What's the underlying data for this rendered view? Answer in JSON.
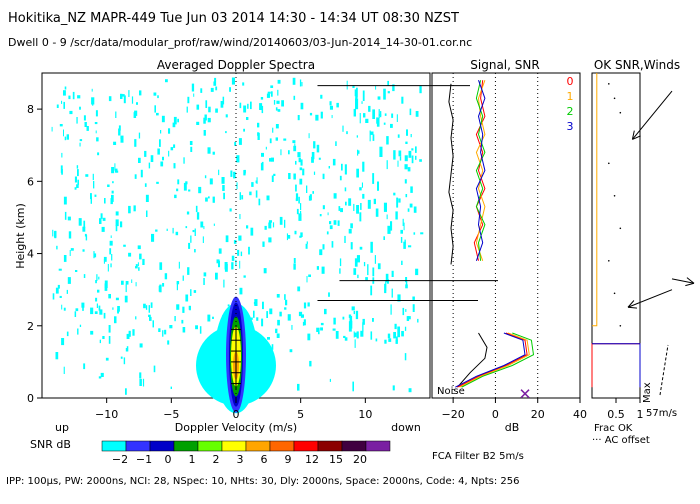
{
  "header": {
    "title_line": "Hokitika_NZ   MAPR-449   Tue Jun 03 2014  14:30  -  14:34 UT 08:30 NZST",
    "dwell_line": "Dwell   0  -   9    /scr/data/modular_prof/raw/wind/20140603/03-Jun-2014_14-30-01.cor.nc"
  },
  "footer": {
    "params": "IPP: 100μs,  PW: 2000ns,  NCI:  28,  NSpec: 10, NHts: 30,  Dly: 2000ns,  Space: 2000ns,  Code: 4,  Npts: 256",
    "filter": "FCA Filter B2   5m/s"
  },
  "chart_data": [
    {
      "type": "heatmap",
      "title": "Averaged Doppler Spectra",
      "xlabel": "Doppler Velocity (m/s)",
      "ylabel": "Height (km)",
      "xlim": [
        -15,
        15
      ],
      "ylim": [
        0,
        9
      ],
      "x_ticks": [
        -10,
        -5,
        0,
        5,
        10
      ],
      "x_tick_labels": [
        "−10",
        "−5",
        "0",
        "5",
        "10"
      ],
      "y_ticks": [
        0,
        2,
        4,
        6,
        8
      ],
      "y_tick_labels": [
        "0",
        "2",
        "4",
        "6",
        "8"
      ],
      "x_end_labels": {
        "left": "up",
        "right": "down"
      },
      "colorbar": {
        "label": "SNR dB",
        "tick_labels": [
          "−2",
          "−1",
          "0",
          "1",
          "2",
          "3",
          "6",
          "9",
          "12",
          "15",
          "20"
        ],
        "colors": [
          "#00ffff",
          "#3333ff",
          "#0000c8",
          "#00a000",
          "#66ff00",
          "#ffff00",
          "#ffa500",
          "#ff6600",
          "#ff0000",
          "#8b0000",
          "#400040",
          "#7a1fa2"
        ]
      },
      "signal_core": {
        "height_range_km": [
          0.3,
          2.0
        ],
        "peak_velocity_ms": 0,
        "peak_snr_db": 20
      },
      "bad_heights_km": [
        8.65,
        3.25,
        2.7
      ]
    },
    {
      "type": "line",
      "title": "Signal, SNR",
      "xlabel": "dB",
      "xlim": [
        -30,
        40
      ],
      "ylim": [
        0,
        9
      ],
      "x_ticks": [
        -20,
        0,
        20,
        40
      ],
      "x_tick_labels": [
        "−20",
        "0",
        "20",
        "40"
      ],
      "annotations": [
        "Noise"
      ],
      "legend": [
        "0",
        "1",
        "2",
        "3"
      ],
      "legend_colors": [
        "#ff0000",
        "#ffaa00",
        "#00cc00",
        "#0000cc"
      ],
      "series": [
        {
          "name": "Noise",
          "color": "#000000",
          "points": [
            [
              -21,
              3.7
            ],
            [
              -20,
              4.2
            ],
            [
              -21,
              4.7
            ],
            [
              -20,
              5.2
            ],
            [
              -22,
              5.7
            ],
            [
              -21,
              6.2
            ],
            [
              -20,
              6.7
            ],
            [
              -21,
              7.2
            ],
            [
              -20,
              7.7
            ],
            [
              -22,
              8.2
            ],
            [
              -21,
              8.7
            ]
          ]
        },
        {
          "name": "0",
          "color": "#ff0000",
          "points": [
            [
              -8,
              3.8
            ],
            [
              -10,
              4.3
            ],
            [
              -6,
              4.8
            ],
            [
              -9,
              5.3
            ],
            [
              -5,
              5.8
            ],
            [
              -8,
              6.3
            ],
            [
              -6,
              6.8
            ],
            [
              -9,
              7.3
            ],
            [
              -5,
              7.8
            ],
            [
              -7,
              8.3
            ],
            [
              -6,
              8.8
            ]
          ]
        },
        {
          "name": "1",
          "color": "#ffaa00",
          "points": [
            [
              -6,
              3.8
            ],
            [
              -9,
              4.3
            ],
            [
              -7,
              4.8
            ],
            [
              -5,
              5.3
            ],
            [
              -8,
              5.8
            ],
            [
              -6,
              6.3
            ],
            [
              -9,
              6.8
            ],
            [
              -5,
              7.3
            ],
            [
              -7,
              7.8
            ],
            [
              -8,
              8.3
            ],
            [
              -5,
              8.8
            ]
          ]
        },
        {
          "name": "2",
          "color": "#00cc00",
          "points": [
            [
              -7,
              3.8
            ],
            [
              -8,
              4.3
            ],
            [
              -5,
              4.8
            ],
            [
              -9,
              5.3
            ],
            [
              -6,
              5.8
            ],
            [
              -9,
              6.3
            ],
            [
              -5,
              6.8
            ],
            [
              -8,
              7.3
            ],
            [
              -6,
              7.8
            ],
            [
              -9,
              8.3
            ],
            [
              -7,
              8.8
            ]
          ]
        },
        {
          "name": "3",
          "color": "#0000cc",
          "points": [
            [
              -9,
              3.8
            ],
            [
              -6,
              4.3
            ],
            [
              -8,
              4.8
            ],
            [
              -7,
              5.3
            ],
            [
              -9,
              5.8
            ],
            [
              -5,
              6.3
            ],
            [
              -7,
              6.8
            ],
            [
              -6,
              7.3
            ],
            [
              -8,
              7.8
            ],
            [
              -5,
              8.3
            ],
            [
              -8,
              8.8
            ]
          ]
        },
        {
          "name": "Noise-low",
          "color": "#000000",
          "points": [
            [
              -18,
              0.3
            ],
            [
              -12,
              0.7
            ],
            [
              -5,
              1.1
            ],
            [
              -4,
              1.4
            ],
            [
              -8,
              1.8
            ]
          ]
        },
        {
          "name": "SNR-0",
          "color": "#ff0000",
          "points": [
            [
              -18,
              0.3
            ],
            [
              -8,
              0.6
            ],
            [
              5,
              0.9
            ],
            [
              15,
              1.2
            ],
            [
              14,
              1.6
            ],
            [
              5,
              1.8
            ]
          ]
        },
        {
          "name": "SNR-1",
          "color": "#ffaa00",
          "points": [
            [
              -17,
              0.3
            ],
            [
              -7,
              0.6
            ],
            [
              6,
              0.9
            ],
            [
              16,
              1.2
            ],
            [
              15,
              1.6
            ],
            [
              6,
              1.8
            ]
          ]
        },
        {
          "name": "SNR-2",
          "color": "#00cc00",
          "points": [
            [
              -16,
              0.3
            ],
            [
              -6,
              0.6
            ],
            [
              8,
              0.9
            ],
            [
              18,
              1.2
            ],
            [
              17,
              1.6
            ],
            [
              8,
              1.8
            ]
          ]
        },
        {
          "name": "SNR-3",
          "color": "#0000cc",
          "points": [
            [
              -19,
              0.3
            ],
            [
              -9,
              0.6
            ],
            [
              4,
              0.9
            ],
            [
              14,
              1.2
            ],
            [
              13,
              1.6
            ],
            [
              4,
              1.8
            ]
          ]
        }
      ]
    },
    {
      "type": "line",
      "title": "OK SNR,Winds",
      "xlim": [
        0,
        1
      ],
      "ylim": [
        0,
        9
      ],
      "x_ticks": [
        0.5,
        1
      ],
      "x_tick_labels": [
        "0.5",
        "1"
      ],
      "footnotes": [
        "Frac OK",
        "··· AC offset"
      ],
      "wind_scale_label": "Max",
      "wind_scale_value": "57m/s",
      "frac_ok": [
        {
          "name": "0",
          "color": "#ff0000",
          "points": [
            [
              0,
              0.3
            ],
            [
              0,
              1.5
            ],
            [
              1,
              1.5
            ],
            [
              1,
              0.3
            ]
          ]
        },
        {
          "name": "1",
          "color": "#ffaa00",
          "points": [
            [
              0,
              2.0
            ],
            [
              0.1,
              2.0
            ],
            [
              0.1,
              9
            ]
          ]
        },
        {
          "name": "3",
          "color": "#0000cc",
          "points": [
            [
              0,
              1.5
            ],
            [
              1,
              1.5
            ],
            [
              1,
              0.3
            ]
          ]
        }
      ],
      "winds": [
        {
          "height_km": 8.5,
          "u": -18,
          "v": -22
        },
        {
          "height_km": 3.0,
          "u": -20,
          "v": -8
        },
        {
          "height_km": 3.3,
          "u": 10,
          "v": -2
        }
      ]
    }
  ]
}
